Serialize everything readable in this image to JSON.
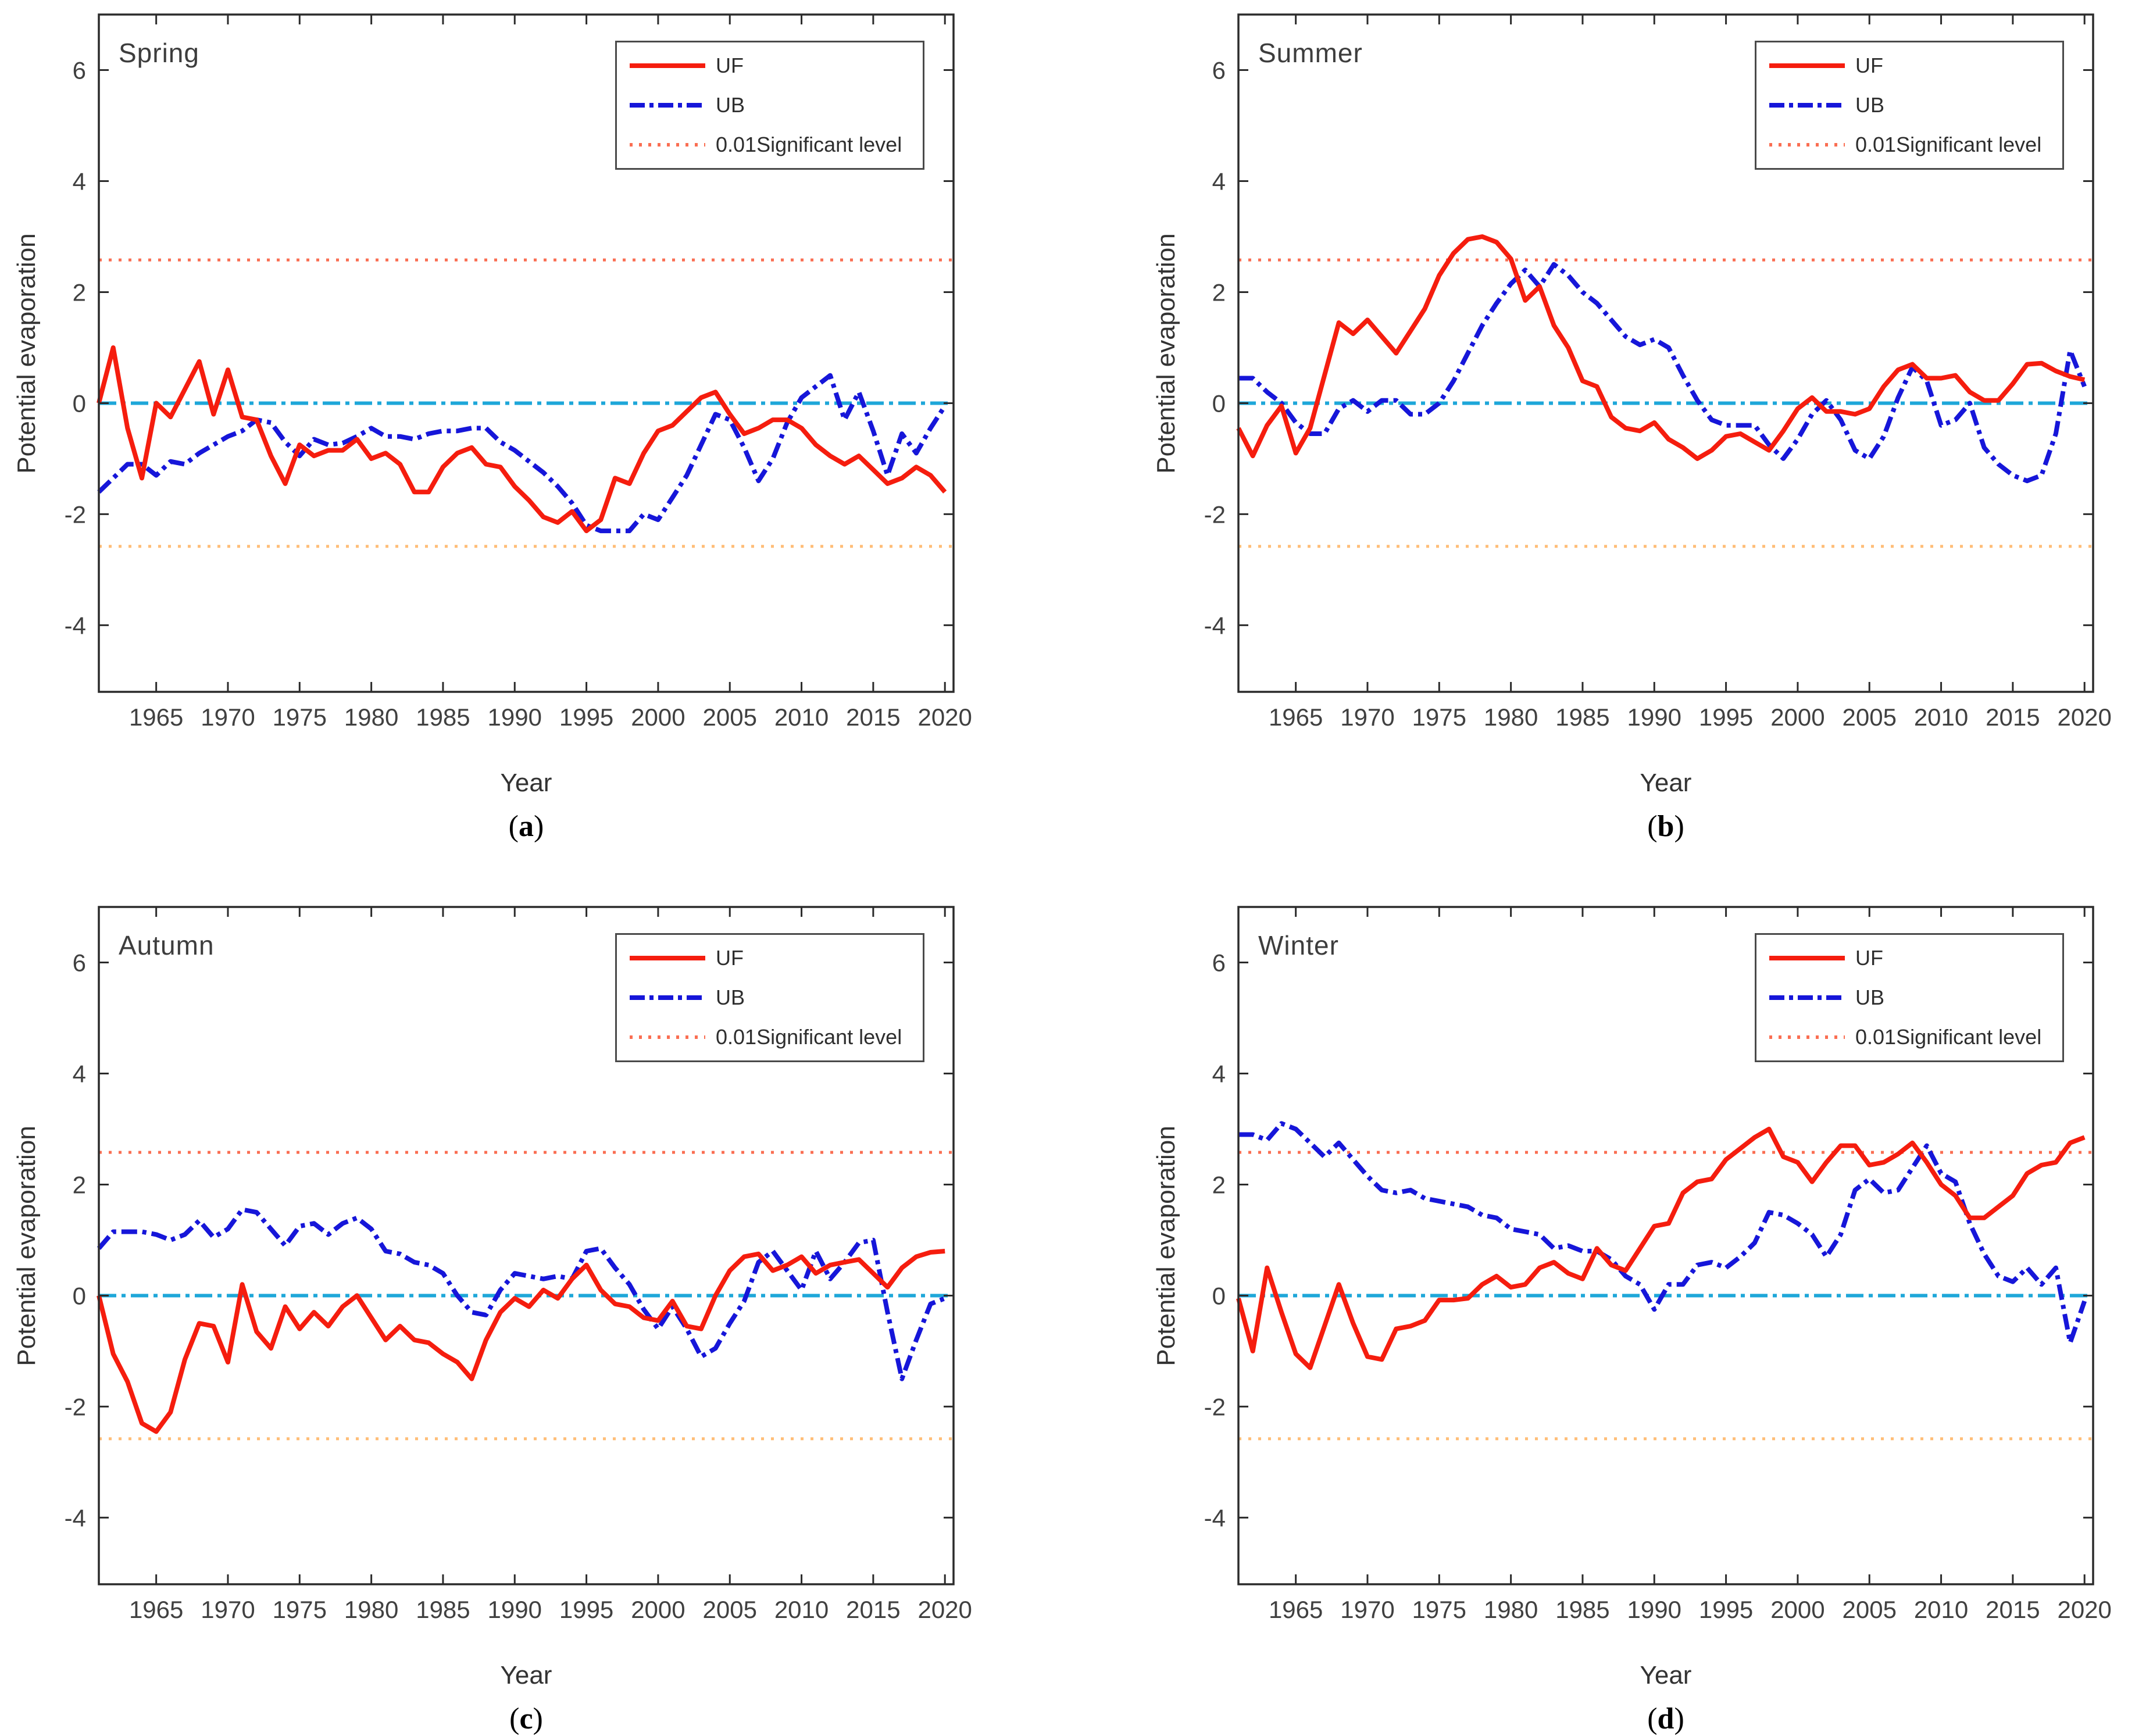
{
  "figure": {
    "x_label": "Year",
    "y_label": "Potential evaporation",
    "legend": [
      "UF",
      "UB",
      "0.01Significant level"
    ],
    "significance_threshold": 2.58,
    "years": [
      1961,
      1962,
      1963,
      1964,
      1965,
      1966,
      1967,
      1968,
      1969,
      1970,
      1971,
      1972,
      1973,
      1974,
      1975,
      1976,
      1977,
      1978,
      1979,
      1980,
      1981,
      1982,
      1983,
      1984,
      1985,
      1986,
      1987,
      1988,
      1989,
      1990,
      1991,
      1992,
      1993,
      1994,
      1995,
      1996,
      1997,
      1998,
      1999,
      2000,
      2001,
      2002,
      2003,
      2004,
      2005,
      2006,
      2007,
      2008,
      2009,
      2010,
      2011,
      2012,
      2013,
      2014,
      2015,
      2016,
      2017,
      2018,
      2019,
      2020
    ],
    "x_ticks": [
      1965,
      1970,
      1975,
      1980,
      1985,
      1990,
      1995,
      2000,
      2005,
      2010,
      2015,
      2020
    ],
    "y_ticks": [
      -4,
      -2,
      0,
      2,
      4,
      6
    ],
    "x_range": [
      1961,
      2020.6
    ],
    "y_range": [
      -5.2,
      7.0
    ],
    "colors": {
      "uf": "#f51d0e",
      "ub": "#1616d9",
      "zero_line": "#1ea7d9",
      "sig_upper": "#fa6e52",
      "sig_lower": "#ffbe78",
      "axis": "#2b2b2b",
      "tick_text": "#404040"
    }
  },
  "chart_data": [
    {
      "type": "line",
      "title": "Spring",
      "letter": "a",
      "series": {
        "UF": [
          0.0,
          1.0,
          -0.45,
          -1.35,
          0.0,
          -0.25,
          0.25,
          0.75,
          -0.2,
          0.6,
          -0.25,
          -0.3,
          -0.95,
          -1.45,
          -0.75,
          -0.95,
          -0.85,
          -0.85,
          -0.65,
          -1.0,
          -0.9,
          -1.1,
          -1.6,
          -1.6,
          -1.15,
          -0.9,
          -0.8,
          -1.1,
          -1.15,
          -1.5,
          -1.75,
          -2.05,
          -2.15,
          -1.95,
          -2.3,
          -2.1,
          -1.35,
          -1.45,
          -0.9,
          -0.5,
          -0.4,
          -0.15,
          0.1,
          0.2,
          -0.2,
          -0.55,
          -0.45,
          -0.3,
          -0.3,
          -0.45,
          -0.75,
          -0.95,
          -1.1,
          -0.95,
          -1.2,
          -1.45,
          -1.35,
          -1.15,
          -1.3,
          -1.6
        ],
        "UB": [
          -1.6,
          -1.35,
          -1.1,
          -1.1,
          -1.3,
          -1.05,
          -1.1,
          -0.9,
          -0.75,
          -0.6,
          -0.5,
          -0.3,
          -0.35,
          -0.7,
          -0.95,
          -0.65,
          -0.75,
          -0.72,
          -0.6,
          -0.45,
          -0.6,
          -0.6,
          -0.65,
          -0.55,
          -0.5,
          -0.5,
          -0.45,
          -0.45,
          -0.7,
          -0.85,
          -1.05,
          -1.25,
          -1.5,
          -1.8,
          -2.2,
          -2.3,
          -2.3,
          -2.3,
          -2.0,
          -2.1,
          -1.7,
          -1.3,
          -0.75,
          -0.2,
          -0.3,
          -0.8,
          -1.4,
          -1.0,
          -0.35,
          0.1,
          0.3,
          0.5,
          -0.3,
          0.2,
          -0.5,
          -1.3,
          -0.55,
          -0.9,
          -0.45,
          -0.05
        ]
      }
    },
    {
      "type": "line",
      "title": "Summer",
      "letter": "b",
      "series": {
        "UF": [
          -0.45,
          -0.95,
          -0.4,
          -0.05,
          -0.9,
          -0.45,
          0.5,
          1.45,
          1.25,
          1.5,
          1.2,
          0.9,
          1.3,
          1.7,
          2.3,
          2.7,
          2.95,
          3.0,
          2.9,
          2.6,
          1.85,
          2.1,
          1.4,
          1.0,
          0.4,
          0.3,
          -0.25,
          -0.45,
          -0.5,
          -0.35,
          -0.65,
          -0.8,
          -1.0,
          -0.85,
          -0.6,
          -0.55,
          -0.7,
          -0.85,
          -0.5,
          -0.1,
          0.1,
          -0.15,
          -0.15,
          -0.2,
          -0.1,
          0.3,
          0.6,
          0.7,
          0.45,
          0.45,
          0.5,
          0.2,
          0.05,
          0.05,
          0.35,
          0.7,
          0.72,
          0.58,
          0.48,
          0.42
        ],
        "UB": [
          0.45,
          0.45,
          0.2,
          0.0,
          -0.35,
          -0.55,
          -0.55,
          -0.1,
          0.05,
          -0.15,
          0.05,
          0.05,
          -0.2,
          -0.2,
          0.0,
          0.4,
          0.9,
          1.4,
          1.8,
          2.15,
          2.4,
          2.1,
          2.5,
          2.3,
          2.0,
          1.8,
          1.5,
          1.2,
          1.05,
          1.15,
          1.0,
          0.5,
          0.05,
          -0.3,
          -0.4,
          -0.4,
          -0.4,
          -0.75,
          -1.0,
          -0.65,
          -0.2,
          0.05,
          -0.3,
          -0.85,
          -1.0,
          -0.6,
          0.1,
          0.65,
          0.4,
          -0.4,
          -0.3,
          0.0,
          -0.8,
          -1.1,
          -1.3,
          -1.4,
          -1.3,
          -0.55,
          0.95,
          0.3
        ]
      }
    },
    {
      "type": "line",
      "title": "Autumn",
      "letter": "c",
      "series": {
        "UF": [
          0.0,
          -1.05,
          -1.55,
          -2.3,
          -2.45,
          -2.1,
          -1.15,
          -0.5,
          -0.55,
          -1.2,
          0.2,
          -0.65,
          -0.95,
          -0.2,
          -0.6,
          -0.3,
          -0.55,
          -0.2,
          0.0,
          -0.4,
          -0.8,
          -0.55,
          -0.8,
          -0.85,
          -1.05,
          -1.2,
          -1.5,
          -0.8,
          -0.3,
          -0.05,
          -0.2,
          0.1,
          -0.05,
          0.3,
          0.55,
          0.1,
          -0.15,
          -0.2,
          -0.4,
          -0.45,
          -0.1,
          -0.55,
          -0.6,
          0.0,
          0.45,
          0.7,
          0.75,
          0.45,
          0.55,
          0.7,
          0.4,
          0.55,
          0.6,
          0.65,
          0.4,
          0.15,
          0.5,
          0.7,
          0.78,
          0.8
        ],
        "UB": [
          0.85,
          1.15,
          1.15,
          1.15,
          1.1,
          1.0,
          1.1,
          1.35,
          1.05,
          1.2,
          1.55,
          1.5,
          1.2,
          0.9,
          1.25,
          1.3,
          1.1,
          1.3,
          1.4,
          1.2,
          0.8,
          0.75,
          0.6,
          0.55,
          0.4,
          0.0,
          -0.3,
          -0.35,
          0.1,
          0.4,
          0.35,
          0.3,
          0.35,
          0.3,
          0.8,
          0.85,
          0.5,
          0.2,
          -0.25,
          -0.6,
          -0.2,
          -0.6,
          -1.1,
          -0.95,
          -0.5,
          -0.1,
          0.6,
          0.8,
          0.45,
          0.1,
          0.8,
          0.3,
          0.6,
          0.95,
          1.0,
          -0.3,
          -1.5,
          -0.8,
          -0.15,
          -0.05
        ]
      }
    },
    {
      "type": "line",
      "title": "Winter",
      "letter": "d",
      "series": {
        "UF": [
          -0.05,
          -1.0,
          0.5,
          -0.3,
          -1.05,
          -1.3,
          -0.55,
          0.2,
          -0.5,
          -1.1,
          -1.15,
          -0.6,
          -0.55,
          -0.45,
          -0.08,
          -0.08,
          -0.05,
          0.2,
          0.35,
          0.15,
          0.2,
          0.5,
          0.6,
          0.4,
          0.3,
          0.85,
          0.55,
          0.45,
          0.85,
          1.25,
          1.3,
          1.85,
          2.05,
          2.1,
          2.45,
          2.65,
          2.85,
          3.0,
          2.5,
          2.4,
          2.05,
          2.4,
          2.7,
          2.7,
          2.35,
          2.4,
          2.55,
          2.75,
          2.4,
          2.0,
          1.8,
          1.4,
          1.4,
          1.6,
          1.8,
          2.2,
          2.35,
          2.4,
          2.75,
          2.85
        ],
        "UB": [
          2.9,
          2.9,
          2.8,
          3.1,
          3.0,
          2.75,
          2.5,
          2.75,
          2.45,
          2.15,
          1.9,
          1.85,
          1.9,
          1.75,
          1.7,
          1.65,
          1.6,
          1.45,
          1.4,
          1.2,
          1.15,
          1.1,
          0.85,
          0.9,
          0.8,
          0.8,
          0.65,
          0.35,
          0.2,
          -0.25,
          0.2,
          0.2,
          0.55,
          0.6,
          0.5,
          0.7,
          0.95,
          1.5,
          1.45,
          1.3,
          1.1,
          0.7,
          1.1,
          1.9,
          2.1,
          1.85,
          1.9,
          2.3,
          2.7,
          2.2,
          2.05,
          1.3,
          0.75,
          0.35,
          0.25,
          0.5,
          0.2,
          0.5,
          -0.85,
          -0.1
        ]
      }
    }
  ]
}
